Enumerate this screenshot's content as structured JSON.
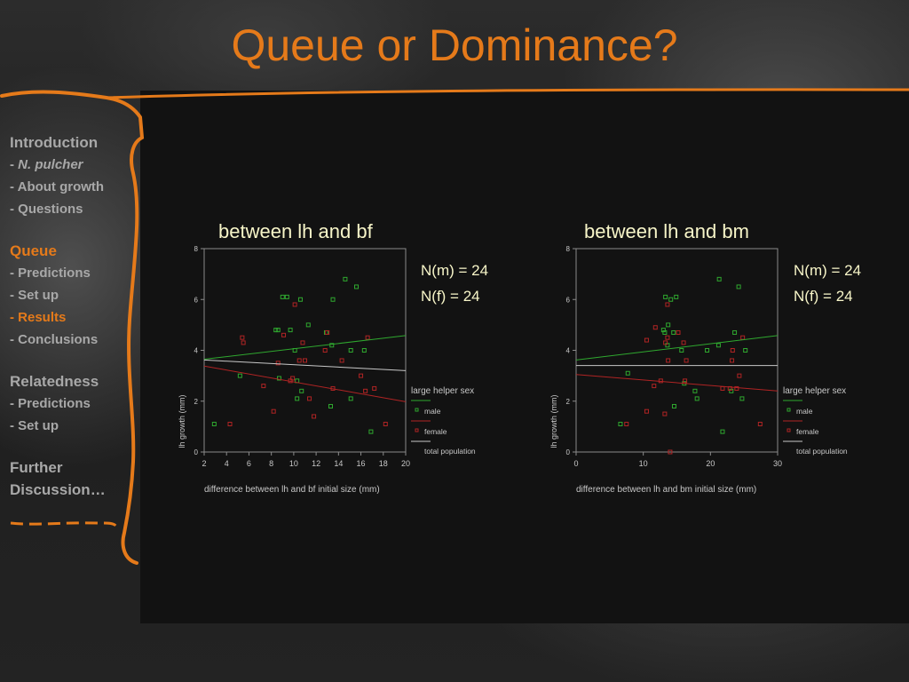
{
  "slide": {
    "title": "Queue or Dominance?",
    "nav": [
      {
        "label": "Introduction",
        "type": "section"
      },
      {
        "label": "N. pulcher",
        "prefix": "- ",
        "type": "italic"
      },
      {
        "label": "- About growth",
        "type": "item"
      },
      {
        "label": "- Questions",
        "type": "item"
      },
      {
        "type": "gap"
      },
      {
        "label": "Queue",
        "type": "section-active"
      },
      {
        "label": "- Predictions",
        "type": "item"
      },
      {
        "label": "- Set up",
        "type": "item"
      },
      {
        "label": "- Results",
        "type": "item-active"
      },
      {
        "label": "- Conclusions",
        "type": "item"
      },
      {
        "type": "gap"
      },
      {
        "label": "Relatedness",
        "type": "section"
      },
      {
        "label": "- Predictions",
        "type": "item"
      },
      {
        "label": "- Set up",
        "type": "item"
      },
      {
        "type": "gap"
      },
      {
        "label": "Further",
        "type": "section"
      },
      {
        "label": "Discussion…",
        "type": "section"
      }
    ]
  },
  "colors": {
    "title": "#e57a1a",
    "male": "#2fa82f",
    "female": "#b02424",
    "total": "#c8c8c8",
    "caption": "#f7f5c8"
  },
  "chart_data": [
    {
      "type": "scatter",
      "title": "between lh and bf",
      "xlabel": "difference between lh and bf initial size (mm)",
      "ylabel": "lh growth (mm)",
      "xlim": [
        2,
        20
      ],
      "ylim": [
        0,
        8
      ],
      "xticks": [
        2,
        4,
        6,
        8,
        10,
        12,
        14,
        16,
        18,
        20
      ],
      "yticks": [
        0,
        2,
        4,
        6,
        8
      ],
      "legend_title": "large helper sex",
      "n_labels": [
        "N(m) = 24",
        "N(f) = 24"
      ],
      "series": [
        {
          "name": "male",
          "points": [
            [
              2.9,
              1.1
            ],
            [
              5.2,
              3.0
            ],
            [
              8.4,
              4.8
            ],
            [
              8.6,
              4.8
            ],
            [
              8.7,
              2.9
            ],
            [
              9.0,
              6.1
            ],
            [
              9.4,
              6.1
            ],
            [
              9.7,
              4.8
            ],
            [
              10.1,
              4.0
            ],
            [
              10.3,
              2.1
            ],
            [
              10.6,
              6.0
            ],
            [
              10.7,
              2.4
            ],
            [
              11.3,
              5.0
            ],
            [
              12.9,
              4.7
            ],
            [
              13.3,
              1.8
            ],
            [
              13.4,
              4.2
            ],
            [
              13.5,
              6.0
            ],
            [
              14.6,
              6.8
            ],
            [
              15.1,
              2.1
            ],
            [
              15.1,
              4.0
            ],
            [
              15.6,
              6.5
            ],
            [
              16.3,
              4.0
            ],
            [
              16.9,
              0.8
            ],
            [
              10.3,
              2.8
            ]
          ]
        },
        {
          "name": "female",
          "points": [
            [
              4.3,
              1.1
            ],
            [
              5.4,
              4.5
            ],
            [
              5.5,
              4.3
            ],
            [
              7.3,
              2.6
            ],
            [
              8.2,
              1.6
            ],
            [
              9.1,
              4.6
            ],
            [
              9.7,
              2.8
            ],
            [
              9.9,
              2.9
            ],
            [
              10.1,
              5.8
            ],
            [
              10.5,
              3.6
            ],
            [
              10.8,
              4.3
            ],
            [
              11.0,
              3.6
            ],
            [
              11.8,
              1.4
            ],
            [
              12.8,
              4.0
            ],
            [
              13.0,
              4.7
            ],
            [
              13.5,
              2.5
            ],
            [
              14.3,
              3.6
            ],
            [
              16.0,
              3.0
            ],
            [
              16.4,
              2.4
            ],
            [
              16.6,
              4.5
            ],
            [
              17.2,
              2.5
            ],
            [
              18.2,
              1.1
            ],
            [
              11.4,
              2.1
            ],
            [
              8.6,
              3.5
            ]
          ]
        }
      ],
      "fits": [
        {
          "name": "male",
          "x": [
            2,
            20
          ],
          "y": [
            3.65,
            4.58
          ]
        },
        {
          "name": "female",
          "x": [
            2,
            20
          ],
          "y": [
            3.38,
            1.98
          ]
        },
        {
          "name": "total population",
          "x": [
            2,
            20
          ],
          "y": [
            3.62,
            3.2
          ]
        }
      ]
    },
    {
      "type": "scatter",
      "title": "between lh and bm",
      "xlabel": "difference between lh and bm initial size (mm)",
      "ylabel": "lh growth (mm)",
      "xlim": [
        0,
        30
      ],
      "ylim": [
        0,
        8
      ],
      "xticks": [
        0,
        10,
        20,
        30
      ],
      "yticks": [
        0,
        2,
        4,
        6,
        8
      ],
      "legend_title": "large helper sex",
      "n_labels": [
        "N(m) = 24",
        "N(f) = 24"
      ],
      "series": [
        {
          "name": "male",
          "points": [
            [
              6.6,
              1.1
            ],
            [
              7.7,
              3.1
            ],
            [
              13.0,
              4.8
            ],
            [
              13.2,
              4.7
            ],
            [
              13.3,
              6.1
            ],
            [
              13.7,
              5.0
            ],
            [
              14.1,
              6.0
            ],
            [
              14.5,
              4.7
            ],
            [
              14.6,
              1.8
            ],
            [
              14.9,
              6.1
            ],
            [
              15.7,
              4.0
            ],
            [
              16.1,
              2.7
            ],
            [
              17.7,
              2.4
            ],
            [
              18.0,
              2.1
            ],
            [
              19.5,
              4.0
            ],
            [
              21.2,
              4.2
            ],
            [
              21.3,
              6.8
            ],
            [
              21.8,
              0.8
            ],
            [
              23.1,
              2.4
            ],
            [
              23.6,
              4.7
            ],
            [
              24.2,
              6.5
            ],
            [
              24.7,
              2.1
            ],
            [
              25.2,
              4.0
            ],
            [
              13.6,
              4.2
            ]
          ]
        },
        {
          "name": "female",
          "points": [
            [
              7.5,
              1.1
            ],
            [
              10.5,
              4.4
            ],
            [
              10.5,
              1.6
            ],
            [
              11.6,
              2.6
            ],
            [
              11.8,
              4.9
            ],
            [
              12.6,
              2.8
            ],
            [
              13.2,
              1.5
            ],
            [
              13.3,
              4.3
            ],
            [
              13.6,
              5.8
            ],
            [
              13.6,
              4.5
            ],
            [
              13.7,
              3.6
            ],
            [
              15.2,
              4.7
            ],
            [
              16.0,
              4.3
            ],
            [
              16.2,
              2.8
            ],
            [
              16.4,
              3.6
            ],
            [
              21.8,
              2.5
            ],
            [
              22.9,
              2.5
            ],
            [
              23.2,
              3.6
            ],
            [
              23.3,
              4.0
            ],
            [
              23.9,
              2.5
            ],
            [
              24.3,
              3.0
            ],
            [
              24.8,
              4.5
            ],
            [
              27.4,
              1.1
            ],
            [
              14.0,
              0.0
            ]
          ]
        }
      ],
      "fits": [
        {
          "name": "male",
          "x": [
            0,
            30
          ],
          "y": [
            3.62,
            4.58
          ]
        },
        {
          "name": "female",
          "x": [
            0,
            30
          ],
          "y": [
            3.05,
            2.4
          ]
        },
        {
          "name": "total population",
          "x": [
            0,
            30
          ],
          "y": [
            3.4,
            3.4
          ]
        }
      ]
    }
  ]
}
